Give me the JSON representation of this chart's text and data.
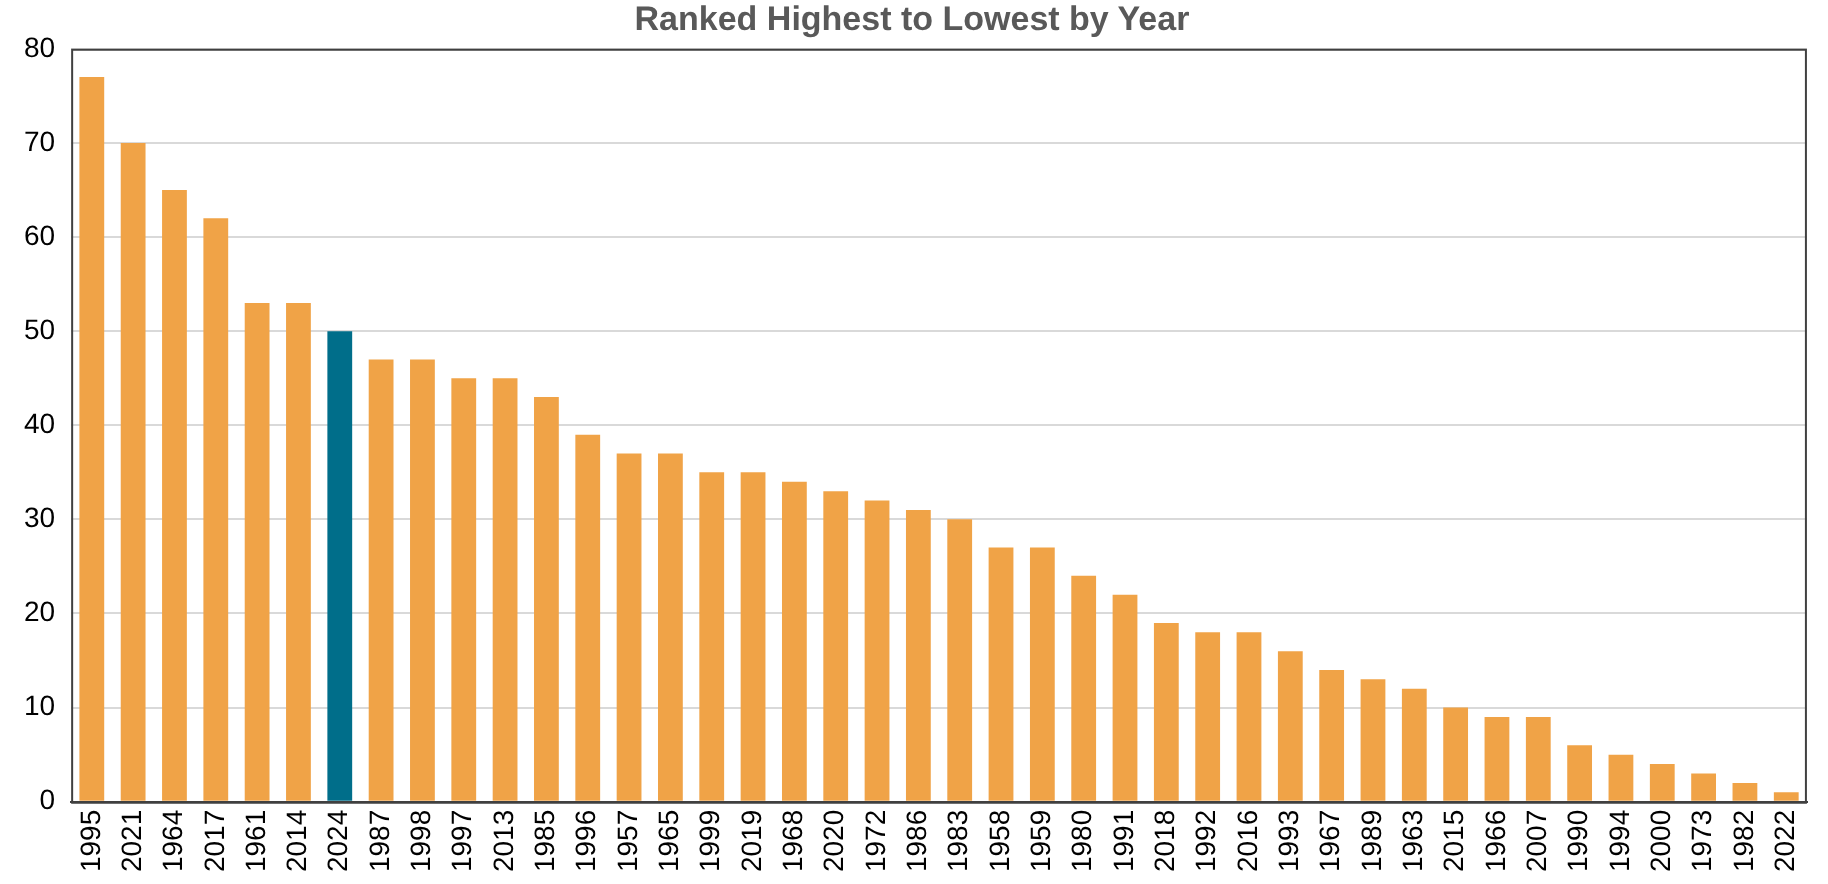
{
  "chart_data": {
    "type": "bar",
    "title": "Ranked Highest to Lowest by Year",
    "categories": [
      "1995",
      "2021",
      "1964",
      "2017",
      "1961",
      "2014",
      "2024",
      "1987",
      "1998",
      "1997",
      "2013",
      "1985",
      "1996",
      "1957",
      "1965",
      "1999",
      "2019",
      "1968",
      "2020",
      "1972",
      "1986",
      "1983",
      "1958",
      "1959",
      "1980",
      "1991",
      "2018",
      "1992",
      "2016",
      "1993",
      "1967",
      "1989",
      "1963",
      "2015",
      "1966",
      "2007",
      "1990",
      "1994",
      "2000",
      "1973",
      "1982",
      "2022"
    ],
    "values": [
      77,
      70,
      65,
      62,
      53,
      53,
      50,
      47,
      47,
      45,
      45,
      43,
      39,
      37,
      37,
      35,
      35,
      34,
      33,
      32,
      31,
      30,
      27,
      27,
      24,
      22,
      19,
      18,
      18,
      16,
      14,
      13,
      12,
      10,
      9,
      9,
      6,
      5,
      4,
      3,
      2,
      1
    ],
    "colors": [
      "#f0a347",
      "#f0a347",
      "#f0a347",
      "#f0a347",
      "#f0a347",
      "#f0a347",
      "#006e8a",
      "#f0a347",
      "#f0a347",
      "#f0a347",
      "#f0a347",
      "#f0a347",
      "#f0a347",
      "#f0a347",
      "#f0a347",
      "#f0a347",
      "#f0a347",
      "#f0a347",
      "#f0a347",
      "#f0a347",
      "#f0a347",
      "#f0a347",
      "#f0a347",
      "#f0a347",
      "#f0a347",
      "#f0a347",
      "#f0a347",
      "#f0a347",
      "#f0a347",
      "#f0a347",
      "#f0a347",
      "#f0a347",
      "#f0a347",
      "#f0a347",
      "#f0a347",
      "#f0a347",
      "#f0a347",
      "#f0a347",
      "#f0a347",
      "#f0a347",
      "#f0a347",
      "#f0a347"
    ],
    "ylim": [
      0,
      80
    ],
    "yticks": [
      0,
      10,
      20,
      30,
      40,
      50,
      60,
      70,
      80
    ],
    "grid": "y",
    "legend": false
  }
}
